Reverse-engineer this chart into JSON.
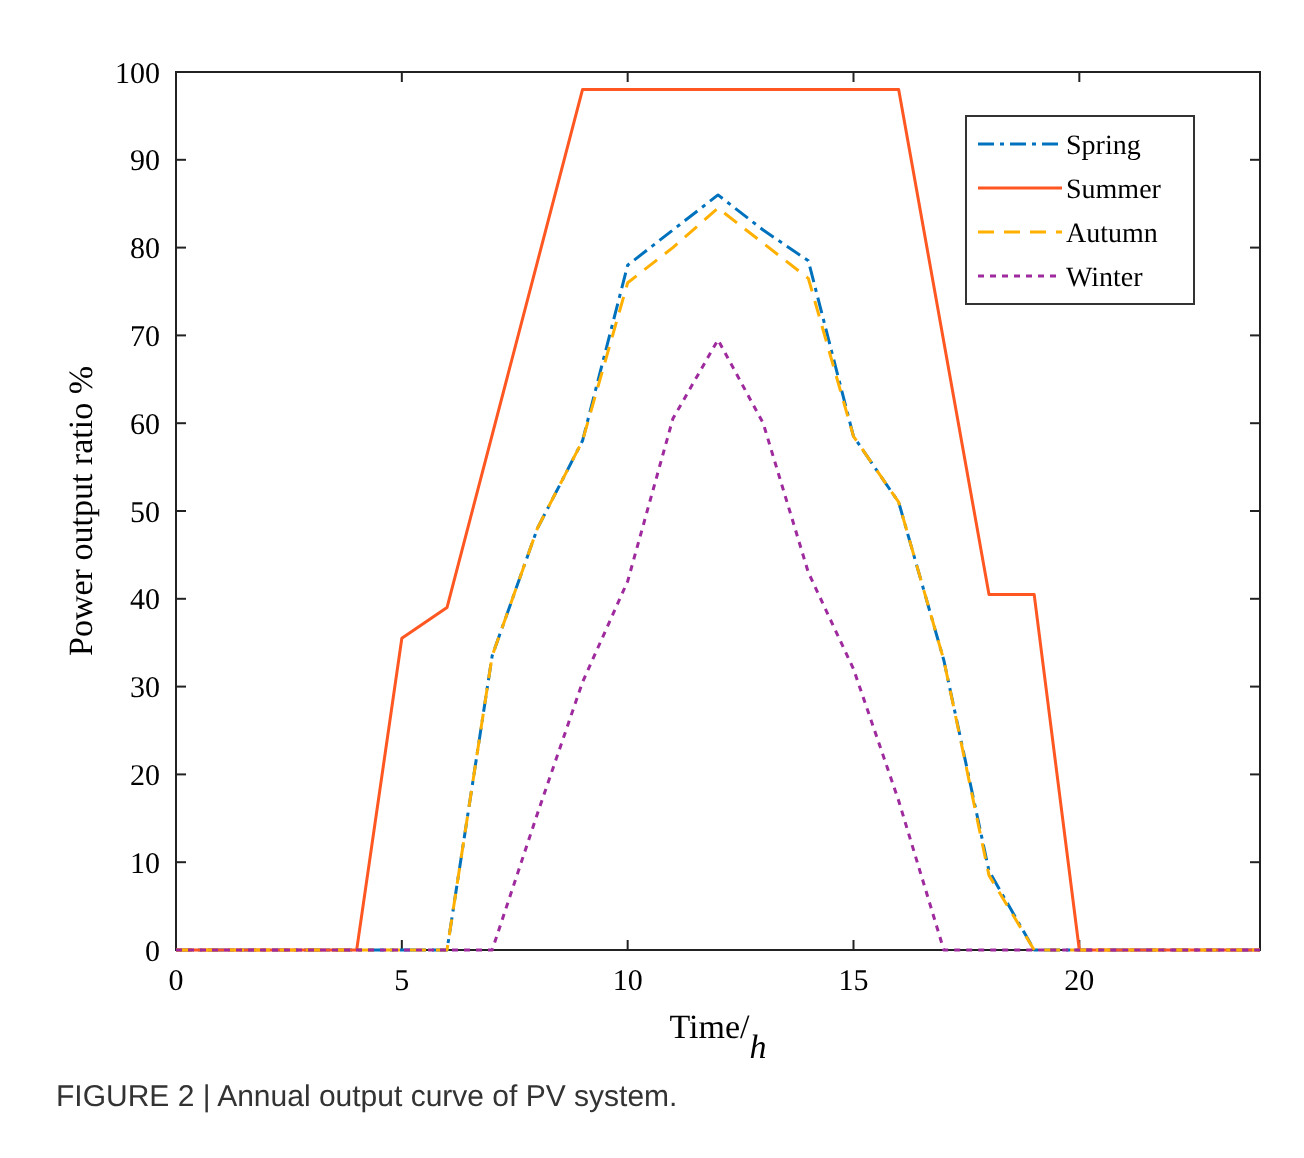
{
  "chart_data": {
    "type": "line",
    "xlabel": "Time/$_{h}$",
    "ylabel": "Power output ratio %",
    "xlim": [
      0,
      24
    ],
    "xticks": [
      0,
      5,
      10,
      15,
      20
    ],
    "ylim": [
      0,
      100
    ],
    "yticks": [
      0,
      10,
      20,
      30,
      40,
      50,
      60,
      70,
      80,
      90,
      100
    ],
    "grid": false,
    "legend": "top right",
    "annotations": [
      "FIGURE 2 | Annual output curve of PV system."
    ],
    "series": [
      {
        "name": "Spring",
        "color": "#0072bd",
        "line_style": "dashdot",
        "x": [
          0,
          6,
          7,
          8,
          9,
          10,
          11,
          12,
          13,
          14,
          15,
          16,
          17,
          18,
          19,
          24
        ],
        "values": [
          0,
          0,
          33.5,
          48,
          58,
          78,
          82,
          86,
          82,
          78.5,
          58.5,
          51,
          33,
          9,
          0,
          0
        ]
      },
      {
        "name": "Summer",
        "color": "#ff5722",
        "line_style": "solid",
        "x": [
          0,
          4,
          5,
          6,
          9,
          16,
          18,
          19,
          20,
          24
        ],
        "values": [
          0,
          0,
          35.5,
          39,
          98,
          98,
          40.5,
          40.5,
          0,
          0
        ]
      },
      {
        "name": "Autumn",
        "color": "#ffb000",
        "line_style": "dashed",
        "x": [
          0,
          6,
          7,
          8,
          9,
          10,
          11,
          12,
          13,
          14,
          15,
          16,
          17,
          18,
          19,
          24
        ],
        "values": [
          0,
          0,
          33.5,
          48,
          58,
          76,
          80,
          84.5,
          80.5,
          76.5,
          58.5,
          51,
          33,
          8.5,
          0,
          0
        ]
      },
      {
        "name": "Winter",
        "color": "#9e2a9e",
        "line_style": "dotted",
        "x": [
          0,
          7,
          8,
          9,
          10,
          11,
          12,
          13,
          14,
          15,
          16,
          17,
          24
        ],
        "values": [
          0,
          0,
          15.5,
          30.5,
          42,
          60.5,
          69.5,
          60,
          43,
          32,
          17,
          0,
          0
        ]
      }
    ]
  }
}
